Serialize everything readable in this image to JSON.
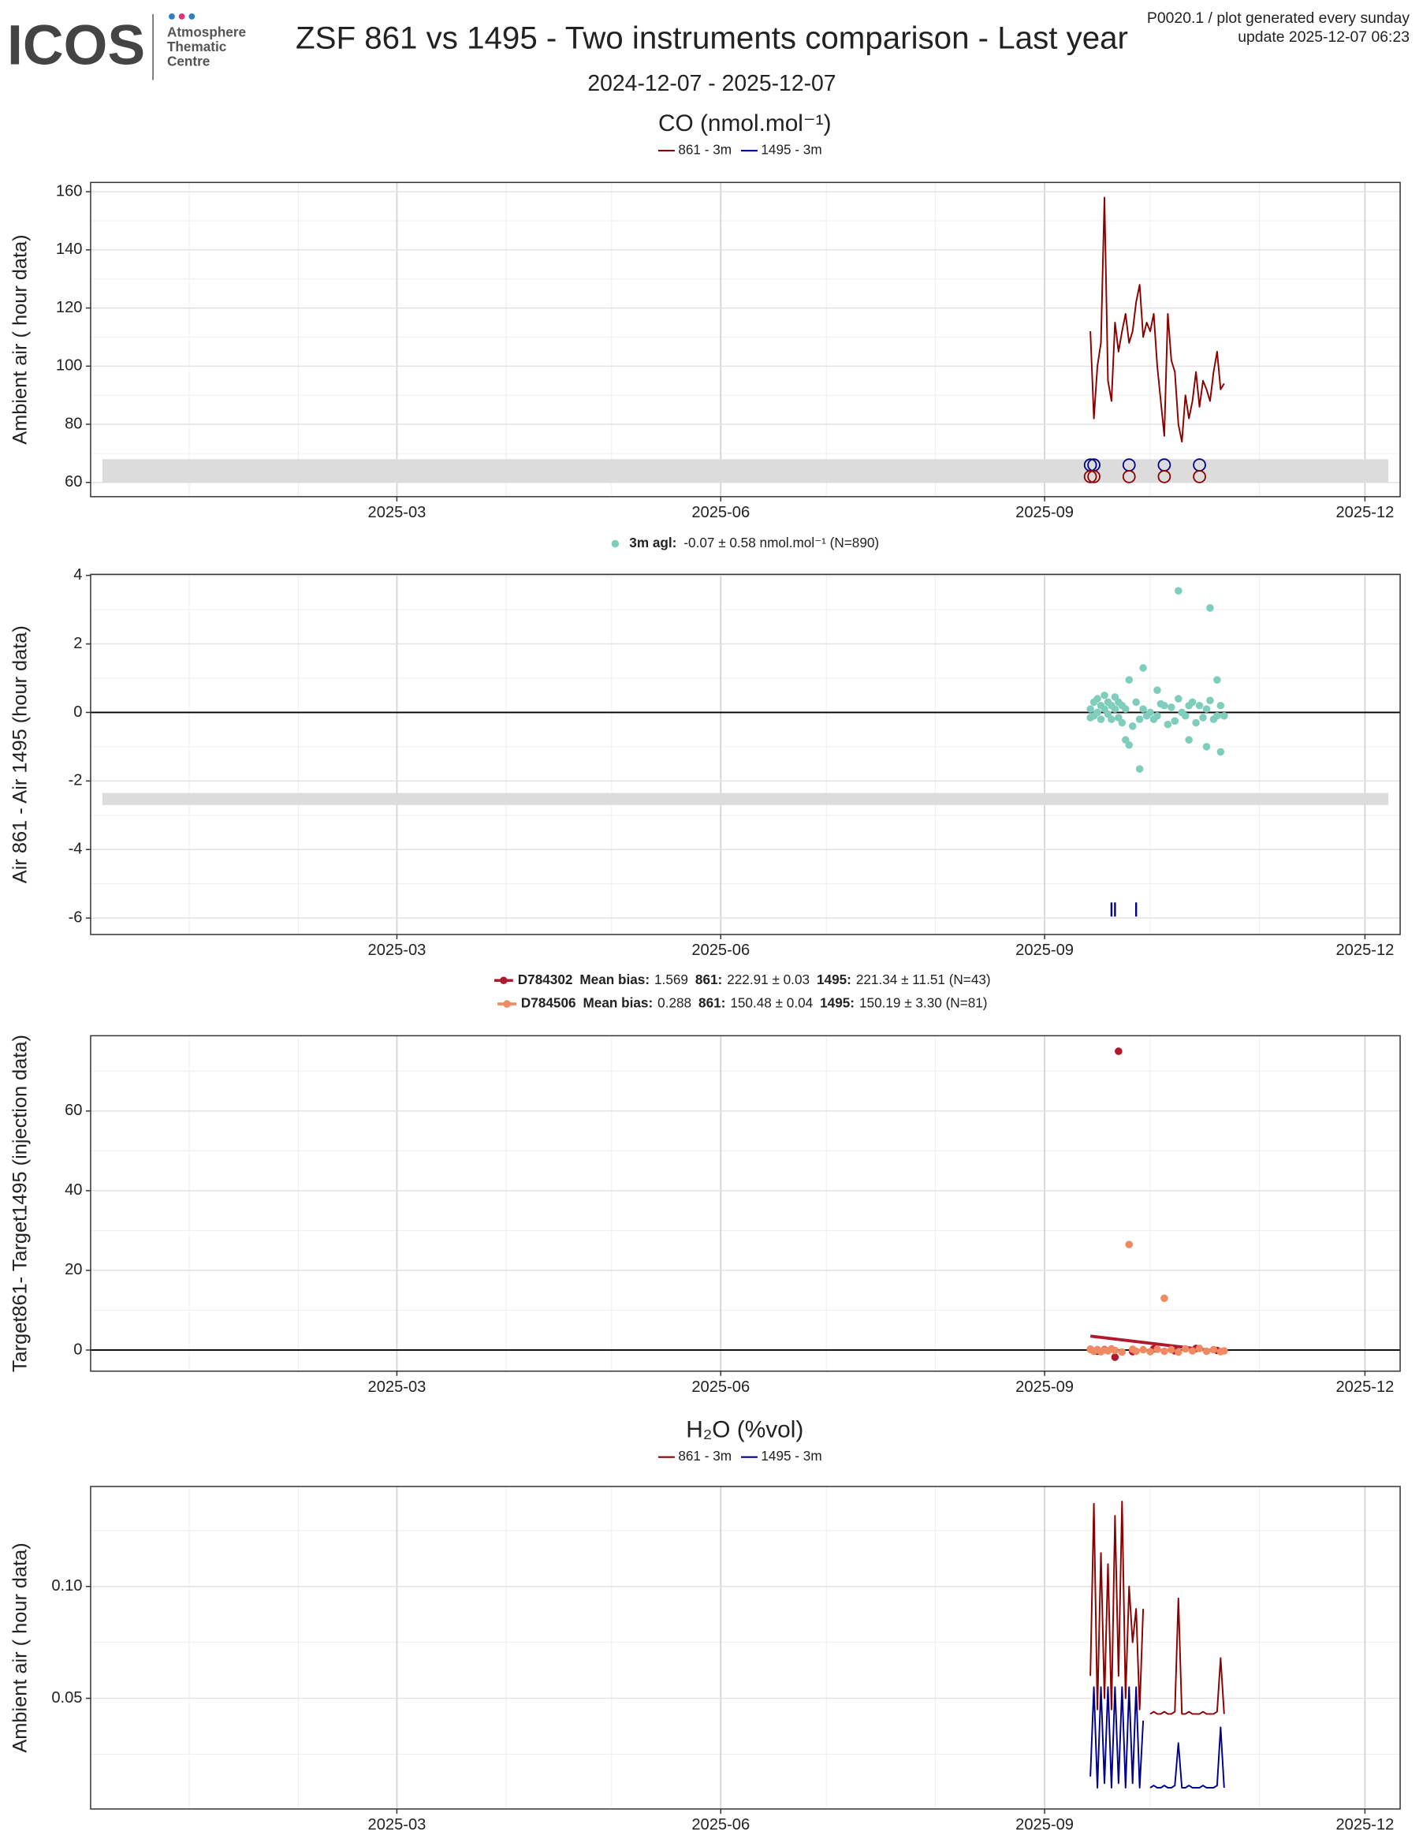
{
  "header": {
    "logo": "ICOS",
    "logo_lines": [
      "Atmosphere",
      "Thematic",
      "Centre"
    ],
    "title": "ZSF 861 vs 1495 - Two instruments comparison - Last year",
    "subtitle": "2024-12-07 - 2025-12-07",
    "info": [
      "P0020.1 / plot generated every sunday",
      "update  2025-12-07 06:23"
    ]
  },
  "chart_data": [
    {
      "type": "line",
      "section_title": "CO (nmol.mol⁻¹)",
      "ylabel": "Ambient air ( hour data)",
      "x": [
        "2025-09-14",
        "2025-09-15",
        "2025-09-16",
        "2025-09-17",
        "2025-09-18",
        "2025-09-19",
        "2025-09-20",
        "2025-09-21",
        "2025-09-22",
        "2025-09-23",
        "2025-09-24",
        "2025-09-25",
        "2025-09-26",
        "2025-09-27",
        "2025-09-28",
        "2025-09-29",
        "2025-09-30",
        "2025-10-01",
        "2025-10-02",
        "2025-10-03",
        "2025-10-04",
        "2025-10-05",
        "2025-10-06",
        "2025-10-07",
        "2025-10-08",
        "2025-10-09",
        "2025-10-10",
        "2025-10-11",
        "2025-10-12",
        "2025-10-13",
        "2025-10-14",
        "2025-10-15",
        "2025-10-16",
        "2025-10-17",
        "2025-10-18",
        "2025-10-19",
        "2025-10-20",
        "2025-10-21",
        "2025-10-22"
      ],
      "series": [
        {
          "name": "861 - 3m",
          "color": "#8b0000",
          "values": [
            112,
            82,
            100,
            108,
            158,
            95,
            88,
            115,
            105,
            112,
            118,
            108,
            112,
            122,
            128,
            110,
            115,
            112,
            118,
            100,
            88,
            76,
            118,
            102,
            98,
            80,
            74,
            90,
            82,
            88,
            98,
            86,
            95,
            92,
            88,
            98,
            105,
            92,
            94
          ]
        },
        {
          "name": "1495 - 3m",
          "color": "#00008b",
          "values": [
            null,
            null,
            null,
            null,
            null,
            null,
            null,
            null,
            null,
            null,
            null,
            null,
            null,
            null,
            null,
            null,
            null,
            null,
            null,
            null,
            null,
            null,
            null,
            null,
            null,
            null,
            null,
            null,
            null,
            null,
            null,
            null,
            null,
            null,
            null,
            null,
            null,
            null,
            null
          ]
        }
      ],
      "band": [
        60,
        68
      ],
      "events": [
        {
          "color": "#00008b",
          "y": 66,
          "marker": "circle",
          "x": [
            "2025-09-14",
            "2025-09-15",
            "2025-09-25",
            "2025-10-05",
            "2025-10-15"
          ]
        },
        {
          "color": "#8b0000",
          "y": 62,
          "marker": "circle",
          "x": [
            "2025-09-14",
            "2025-09-15",
            "2025-09-25",
            "2025-10-05",
            "2025-10-15"
          ]
        }
      ],
      "xlim": [
        "2024-12-04",
        "2025-12-11"
      ],
      "xticks": [
        "2025-03",
        "2025-06",
        "2025-09",
        "2025-12"
      ],
      "ylim": [
        55.1,
        163.2
      ],
      "yticks": [
        60,
        80,
        100,
        120,
        140,
        160
      ],
      "grid": true
    },
    {
      "type": "scatter",
      "ylabel": "Air 861 - Air 1495 (hour data)",
      "series": [
        {
          "name": "3m agl:",
          "stats": "-0.07 ± 0.58 nmol.mol⁻¹   (N=890)",
          "color": "#7fcdbb",
          "x": [
            "2025-09-14",
            "2025-09-14",
            "2025-09-15",
            "2025-09-15",
            "2025-09-16",
            "2025-09-16",
            "2025-09-17",
            "2025-09-17",
            "2025-09-18",
            "2025-09-18",
            "2025-09-19",
            "2025-09-19",
            "2025-09-20",
            "2025-09-20",
            "2025-09-21",
            "2025-09-21",
            "2025-09-22",
            "2025-09-22",
            "2025-09-23",
            "2025-09-23",
            "2025-09-24",
            "2025-09-24",
            "2025-09-25",
            "2025-09-25",
            "2025-09-26",
            "2025-09-27",
            "2025-09-28",
            "2025-09-28",
            "2025-09-29",
            "2025-09-29",
            "2025-09-30",
            "2025-10-01",
            "2025-10-02",
            "2025-10-03",
            "2025-10-03",
            "2025-10-04",
            "2025-10-05",
            "2025-10-06",
            "2025-10-07",
            "2025-10-08",
            "2025-10-09",
            "2025-10-09",
            "2025-10-10",
            "2025-10-11",
            "2025-10-12",
            "2025-10-12",
            "2025-10-13",
            "2025-10-14",
            "2025-10-15",
            "2025-10-16",
            "2025-10-17",
            "2025-10-17",
            "2025-10-18",
            "2025-10-18",
            "2025-10-19",
            "2025-10-20",
            "2025-10-20",
            "2025-10-21",
            "2025-10-21",
            "2025-10-22"
          ],
          "values": [
            0.1,
            -0.15,
            0.3,
            -0.1,
            0.4,
            0.0,
            0.2,
            -0.2,
            0.5,
            0.1,
            0.3,
            -0.05,
            0.2,
            -0.2,
            0.45,
            0.1,
            0.3,
            -0.15,
            0.2,
            -0.3,
            -0.8,
            0.1,
            0.95,
            -0.95,
            -0.4,
            0.3,
            -1.65,
            -0.2,
            1.3,
            0.1,
            -0.1,
            0.0,
            -0.2,
            0.65,
            -0.1,
            0.25,
            0.2,
            -0.35,
            0.15,
            -0.25,
            3.55,
            0.4,
            0.0,
            -0.1,
            -0.8,
            0.2,
            0.3,
            -0.3,
            0.2,
            -0.15,
            -1.0,
            0.1,
            3.05,
            0.35,
            -0.2,
            0.95,
            -0.1,
            -1.15,
            0.2,
            -0.1
          ]
        }
      ],
      "hline": 0,
      "band": [
        -2.7,
        -2.35
      ],
      "events": [
        {
          "color": "#00008b",
          "y": -5.75,
          "marker": "line",
          "x": [
            "2025-09-20",
            "2025-09-21",
            "2025-09-27"
          ]
        }
      ],
      "xlim": [
        "2024-12-04",
        "2025-12-11"
      ],
      "xticks": [
        "2025-03",
        "2025-06",
        "2025-09",
        "2025-12"
      ],
      "ylim": [
        -6.48,
        4.03
      ],
      "yticks": [
        -6,
        -4,
        -2,
        0,
        2,
        4
      ],
      "grid": true
    },
    {
      "type": "scatter",
      "ylabel": "Target861- Target1495 (injection data)",
      "series": [
        {
          "name": "D784302",
          "color": "#b2182b",
          "stats": [
            {
              "label": "Mean bias:",
              "text": "1.569"
            },
            {
              "label": "861:",
              "text": "222.91 ± 0.03"
            },
            {
              "label": "1495:",
              "text": "221.34 ± 11.51 (N=43)"
            }
          ],
          "x": [
            "2025-09-14",
            "2025-09-16",
            "2025-09-18",
            "2025-09-21",
            "2025-09-22",
            "2025-09-26",
            "2025-10-02",
            "2025-10-08",
            "2025-10-14",
            "2025-10-20"
          ],
          "values": [
            0.2,
            -0.3,
            0.1,
            -1.8,
            75,
            -0.4,
            0.3,
            -0.2,
            0.4,
            -0.1
          ],
          "trend": {
            "x": [
              "2025-09-14",
              "2025-10-22"
            ],
            "values": [
              3.5,
              -0.5
            ]
          }
        },
        {
          "name": "D784506",
          "color": "#ef8a62",
          "stats": [
            {
              "label": "Mean bias:",
              "text": "0.288"
            },
            {
              "label": "861:",
              "text": "150.48 ± 0.04"
            },
            {
              "label": "1495:",
              "text": "150.19 ± 3.30 (N=81)"
            }
          ],
          "x": [
            "2025-09-14",
            "2025-09-15",
            "2025-09-16",
            "2025-09-17",
            "2025-09-18",
            "2025-09-19",
            "2025-09-20",
            "2025-09-21",
            "2025-09-23",
            "2025-09-25",
            "2025-09-26",
            "2025-09-27",
            "2025-09-29",
            "2025-10-01",
            "2025-10-03",
            "2025-10-05",
            "2025-10-05",
            "2025-10-07",
            "2025-10-09",
            "2025-10-11",
            "2025-10-13",
            "2025-10-15",
            "2025-10-17",
            "2025-10-19",
            "2025-10-21",
            "2025-10-22"
          ],
          "values": [
            0.2,
            -0.3,
            0.1,
            -0.4,
            0.0,
            -0.2,
            0.3,
            -0.1,
            -0.5,
            26.5,
            0.2,
            -0.3,
            0.1,
            -0.4,
            0.2,
            13,
            -0.3,
            0.1,
            -0.5,
            0.3,
            -0.2,
            0.4,
            -0.3,
            0.1,
            -0.4,
            -0.2
          ]
        }
      ],
      "hline": 0,
      "xlim": [
        "2024-12-04",
        "2025-12-11"
      ],
      "xticks": [
        "2025-03",
        "2025-06",
        "2025-09",
        "2025-12"
      ],
      "ylim": [
        -5.3,
        78.9
      ],
      "yticks": [
        0,
        20,
        40,
        60
      ],
      "grid": true
    },
    {
      "type": "line",
      "section_title": "H₂O (%vol)",
      "ylabel": "Ambient air ( hour data)",
      "x": [
        "2025-09-14",
        "2025-09-15",
        "2025-09-16",
        "2025-09-17",
        "2025-09-18",
        "2025-09-19",
        "2025-09-20",
        "2025-09-21",
        "2025-09-22",
        "2025-09-23",
        "2025-09-24",
        "2025-09-25",
        "2025-09-26",
        "2025-09-27",
        "2025-09-28",
        "2025-09-29",
        "2025-09-30",
        "2025-10-01",
        "2025-10-02",
        "2025-10-03",
        "2025-10-04",
        "2025-10-05",
        "2025-10-06",
        "2025-10-07",
        "2025-10-08",
        "2025-10-09",
        "2025-10-10",
        "2025-10-11",
        "2025-10-12",
        "2025-10-13",
        "2025-10-14",
        "2025-10-15",
        "2025-10-16",
        "2025-10-17",
        "2025-10-18",
        "2025-10-19",
        "2025-10-20",
        "2025-10-21",
        "2025-10-22"
      ],
      "series": [
        {
          "name": "861 - 3m",
          "color": "#8b0000",
          "values": [
            0.06,
            0.137,
            0.045,
            0.115,
            0.05,
            0.11,
            0.045,
            0.1316,
            0.06,
            0.138,
            0.05,
            0.1,
            0.075,
            0.09,
            0.045,
            0.09,
            null,
            0.043,
            0.044,
            0.043,
            0.043,
            0.044,
            0.043,
            0.043,
            0.044,
            0.0947,
            0.043,
            0.043,
            0.044,
            0.043,
            0.043,
            0.043,
            0.044,
            0.043,
            0.043,
            0.043,
            0.044,
            0.068,
            0.043
          ]
        },
        {
          "name": "1495 - 3m",
          "color": "#00008b",
          "values": [
            0.015,
            0.055,
            0.01,
            0.055,
            0.012,
            0.055,
            0.01,
            0.055,
            0.012,
            0.055,
            0.01,
            0.055,
            0.012,
            0.055,
            0.01,
            0.04,
            null,
            0.01,
            0.011,
            0.01,
            0.01,
            0.011,
            0.01,
            0.01,
            0.011,
            0.03,
            0.01,
            0.01,
            0.011,
            0.01,
            0.01,
            0.01,
            0.011,
            0.01,
            0.01,
            0.01,
            0.011,
            0.037,
            0.01
          ]
        }
      ],
      "xlim": [
        "2024-12-04",
        "2025-12-11"
      ],
      "xticks": [
        "2025-03",
        "2025-06",
        "2025-09",
        "2025-12"
      ],
      "ylim": [
        0.0005,
        0.1447
      ],
      "yticks": [
        0.05,
        {
          "value": 0.1,
          "label": "0.10"
        }
      ],
      "grid": true
    }
  ]
}
